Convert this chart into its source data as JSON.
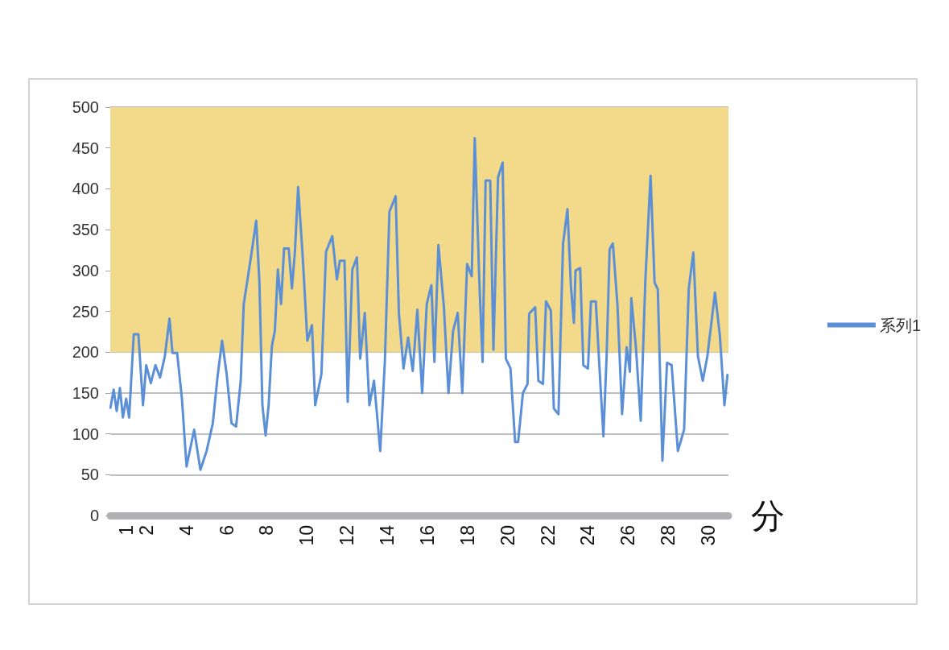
{
  "chart_data": {
    "type": "line",
    "xlabel": "分",
    "xlim": [
      0.2,
      31
    ],
    "xticks": [
      1,
      2,
      4,
      6,
      8,
      10,
      12,
      14,
      16,
      18,
      20,
      22,
      24,
      26,
      28,
      30
    ],
    "ylim": [
      0,
      500
    ],
    "yticks": [
      0,
      50,
      100,
      150,
      200,
      250,
      300,
      350,
      400,
      450,
      500
    ],
    "grid": "y",
    "legend": "right",
    "marker": "none",
    "line_style": "solid",
    "bands": [
      {
        "axis": "y",
        "from": 200,
        "to": 500,
        "color": "#f3d98a"
      }
    ],
    "series": [
      {
        "name": "系列1",
        "color": "#5b8fd6",
        "x": [
          0.21,
          0.37,
          0.52,
          0.68,
          0.83,
          0.99,
          1.14,
          1.37,
          1.6,
          1.83,
          1.99,
          2.22,
          2.45,
          2.68,
          2.92,
          3.15,
          3.3,
          3.53,
          3.77,
          4.0,
          4.38,
          4.69,
          5.0,
          5.31,
          5.54,
          5.77,
          6.0,
          6.24,
          6.47,
          6.7,
          6.85,
          7.09,
          7.32,
          7.47,
          7.63,
          7.78,
          7.94,
          8.09,
          8.25,
          8.4,
          8.55,
          8.71,
          8.86,
          9.09,
          9.25,
          9.4,
          9.56,
          9.79,
          10.02,
          10.25,
          10.41,
          10.72,
          10.95,
          11.26,
          11.49,
          11.64,
          11.87,
          12.03,
          12.26,
          12.49,
          12.65,
          12.88,
          13.11,
          13.34,
          13.65,
          13.88,
          14.11,
          14.42,
          14.58,
          14.81,
          15.04,
          15.27,
          15.5,
          15.74,
          15.97,
          16.2,
          16.35,
          16.55,
          16.82,
          17.05,
          17.28,
          17.51,
          17.74,
          17.98,
          18.21,
          18.36,
          18.59,
          18.75,
          18.9,
          19.13,
          19.29,
          19.52,
          19.75,
          19.91,
          20.14,
          20.37,
          20.52,
          20.76,
          20.99,
          21.07,
          21.37,
          21.53,
          21.76,
          21.91,
          22.15,
          22.3,
          22.53,
          22.76,
          22.98,
          23.15,
          23.3,
          23.38,
          23.61,
          23.77,
          24.0,
          24.15,
          24.39,
          24.62,
          24.77,
          24.93,
          25.08,
          25.24,
          25.47,
          25.7,
          25.93,
          26.09,
          26.16,
          26.39,
          26.63,
          26.86,
          27.12,
          27.32,
          27.48,
          27.71,
          27.94,
          28.17,
          28.48,
          28.79,
          29.02,
          29.25,
          29.48,
          29.72,
          29.95,
          30.33,
          30.57,
          30.8,
          30.95
        ],
        "values": [
          132,
          154,
          128,
          156,
          120,
          143,
          120,
          222,
          222,
          135,
          184,
          162,
          184,
          169,
          195,
          241,
          199,
          199,
          143,
          60,
          105,
          56,
          79,
          113,
          169,
          214,
          173,
          113,
          109,
          165,
          259,
          297,
          335,
          361,
          286,
          135,
          98,
          135,
          207,
          226,
          301,
          259,
          327,
          327,
          278,
          323,
          402,
          316,
          214,
          233,
          135,
          173,
          323,
          342,
          289,
          312,
          312,
          139,
          301,
          316,
          192,
          248,
          135,
          165,
          79,
          188,
          372,
          391,
          248,
          180,
          218,
          177,
          252,
          150,
          259,
          282,
          188,
          331,
          256,
          150,
          226,
          248,
          150,
          308,
          293,
          462,
          286,
          188,
          410,
          410,
          203,
          414,
          432,
          192,
          180,
          90,
          90,
          150,
          161,
          247,
          255,
          165,
          161,
          262,
          251,
          131,
          124,
          333,
          375,
          281,
          236,
          300,
          303,
          184,
          180,
          262,
          262,
          161,
          97,
          195,
          326,
          333,
          258,
          124,
          206,
          176,
          266,
          206,
          116,
          288,
          416,
          285,
          277,
          67,
          187,
          184,
          79,
          105,
          277,
          322,
          195,
          165,
          195,
          273,
          221,
          135,
          172
        ]
      }
    ]
  }
}
